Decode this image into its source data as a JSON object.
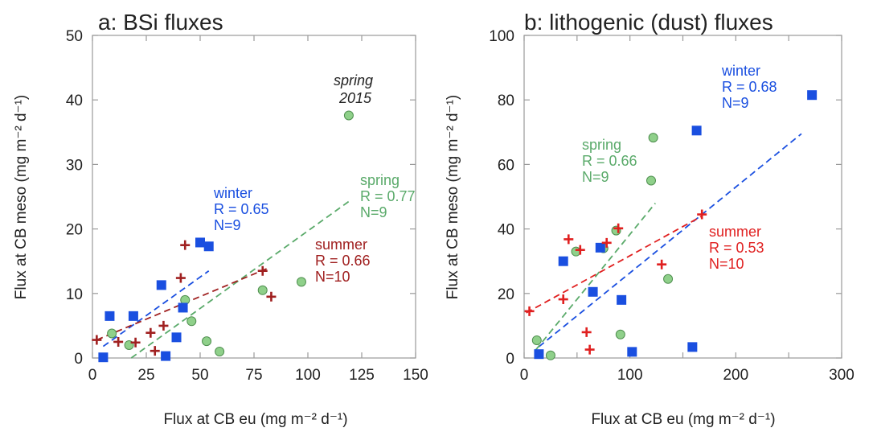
{
  "chart_data": [
    {
      "type": "scatter",
      "title": "a: BSi fluxes",
      "xlabel": "Flux at CB eu (mg m⁻² d⁻¹)",
      "ylabel": "Flux at CB meso (mg m⁻² d⁻¹)",
      "xlim": [
        0,
        150
      ],
      "ylim": [
        0,
        50
      ],
      "xticks": [
        "0",
        "25",
        "50",
        "75",
        "100",
        "125",
        "150"
      ],
      "yticks": [
        "0",
        "10",
        "20",
        "30",
        "40",
        "50"
      ],
      "xtick_values": [
        0,
        25,
        50,
        75,
        100,
        125,
        150
      ],
      "ytick_values": [
        0,
        10,
        20,
        30,
        40,
        50
      ],
      "grid": false,
      "series": [
        {
          "season": "winter",
          "marker": "square",
          "color": "#1a4fe0",
          "points": [
            [
              5,
              0.1
            ],
            [
              8,
              6.5
            ],
            [
              19,
              6.5
            ],
            [
              32,
              11.3
            ],
            [
              34,
              0.3
            ],
            [
              39,
              3.2
            ],
            [
              42,
              7.8
            ],
            [
              50,
              17.9
            ],
            [
              54,
              17.3
            ]
          ],
          "fit": [
            [
              5,
              1.8
            ],
            [
              54,
              13.5
            ]
          ],
          "label_lines": [
            "winter",
            "R = 0.65",
            "N=9"
          ]
        },
        {
          "season": "spring",
          "marker": "circle",
          "color": "#5aaa6a",
          "points": [
            [
              9,
              3.8
            ],
            [
              17,
              2.0
            ],
            [
              43,
              9.0
            ],
            [
              46,
              5.7
            ],
            [
              53,
              2.6
            ],
            [
              59,
              1.0
            ],
            [
              79,
              10.5
            ],
            [
              97,
              11.8
            ],
            [
              119,
              37.6
            ]
          ],
          "fit": [
            [
              18,
              0
            ],
            [
              120,
              24.5
            ]
          ],
          "label_lines": [
            "spring",
            "R = 0.77",
            "N=9"
          ]
        },
        {
          "season": "summer",
          "marker": "plus",
          "color": "#a02020",
          "points": [
            [
              2,
              2.8
            ],
            [
              12,
              2.5
            ],
            [
              20,
              2.4
            ],
            [
              27,
              3.9
            ],
            [
              29,
              1.1
            ],
            [
              33,
              5.0
            ],
            [
              41,
              12.4
            ],
            [
              43,
              17.5
            ],
            [
              79,
              13.5
            ],
            [
              83,
              9.5
            ]
          ],
          "fit": [
            [
              2,
              2.8
            ],
            [
              82,
              14.0
            ]
          ],
          "label_lines": [
            "summer",
            "R = 0.66",
            "N=10"
          ]
        }
      ],
      "annotations": [
        "spring",
        "2015"
      ]
    },
    {
      "type": "scatter",
      "title": "b: lithogenic (dust) fluxes",
      "xlabel": "Flux at CB eu (mg m⁻² d⁻¹)",
      "ylabel": "Flux at CB meso (mg m⁻² d⁻¹)",
      "xlim": [
        0,
        300
      ],
      "ylim": [
        0,
        100
      ],
      "xticks": [
        "0",
        "100",
        "200",
        "300"
      ],
      "yticks": [
        "0",
        "20",
        "40",
        "60",
        "80",
        "100"
      ],
      "xtick_values": [
        0,
        100,
        200,
        300
      ],
      "ytick_values": [
        0,
        20,
        40,
        60,
        80,
        100
      ],
      "minor_xtick_values": [
        50,
        150,
        250
      ],
      "grid": false,
      "series": [
        {
          "season": "winter",
          "marker": "square",
          "color": "#1a4fe0",
          "points": [
            [
              14,
              1.2
            ],
            [
              37,
              30.0
            ],
            [
              65,
              20.5
            ],
            [
              72,
              34.2
            ],
            [
              92,
              18.0
            ],
            [
              102,
              1.9
            ],
            [
              159,
              3.4
            ],
            [
              163,
              70.5
            ],
            [
              272,
              81.5
            ]
          ],
          "fit": [
            [
              14,
              3.5
            ],
            [
              262,
              69.5
            ]
          ],
          "label_lines": [
            "winter",
            "R = 0.68",
            "N=9"
          ]
        },
        {
          "season": "spring",
          "marker": "circle",
          "color": "#5aaa6a",
          "points": [
            [
              12,
              5.5
            ],
            [
              25,
              0.8
            ],
            [
              49,
              33.0
            ],
            [
              75,
              34.0
            ],
            [
              87,
              39.5
            ],
            [
              91,
              7.3
            ],
            [
              120,
              55.0
            ],
            [
              122,
              68.3
            ],
            [
              136,
              24.5
            ]
          ],
          "fit": [
            [
              11,
              2.5
            ],
            [
              124,
              48.0
            ]
          ],
          "label_lines": [
            "spring",
            "R = 0.66",
            "N=9"
          ]
        },
        {
          "season": "summer",
          "marker": "plus",
          "color": "#e02020",
          "points": [
            [
              5,
              14.5
            ],
            [
              37,
              18.2
            ],
            [
              42,
              36.8
            ],
            [
              53,
              33.5
            ],
            [
              59,
              8.0
            ],
            [
              62,
              2.6
            ],
            [
              78,
              35.7
            ],
            [
              89,
              40.2
            ],
            [
              130,
              29.0
            ],
            [
              168,
              44.5
            ]
          ],
          "fit": [
            [
              2,
              14.0
            ],
            [
              168,
              44.0
            ]
          ],
          "label_lines": [
            "summer",
            "R = 0.53",
            "N=10"
          ]
        }
      ]
    }
  ]
}
